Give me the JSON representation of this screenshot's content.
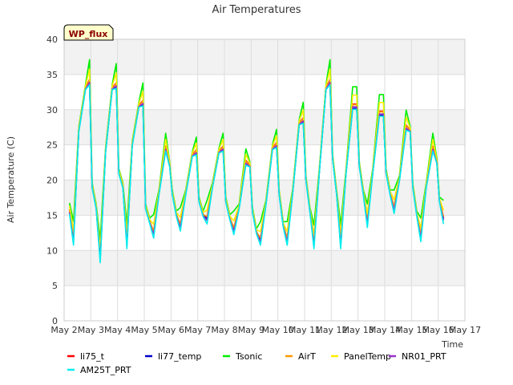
{
  "chart_data": {
    "type": "line",
    "title": "Air Temperatures",
    "xlabel": "Time",
    "ylabel": "Air Temperature (C)",
    "badge": "WP_flux",
    "xlim": [
      0,
      15
    ],
    "ylim": [
      0,
      40
    ],
    "x_ticks": [
      {
        "x": 0,
        "label": "May 2"
      },
      {
        "x": 1,
        "label": "May 3"
      },
      {
        "x": 2,
        "label": "May 4"
      },
      {
        "x": 3,
        "label": "May 5"
      },
      {
        "x": 4,
        "label": "May 6"
      },
      {
        "x": 5,
        "label": "May 7"
      },
      {
        "x": 6,
        "label": "May 8"
      },
      {
        "x": 7,
        "label": "May 9"
      },
      {
        "x": 8,
        "label": "May 10"
      },
      {
        "x": 9,
        "label": "May 11"
      },
      {
        "x": 10,
        "label": "May 12"
      },
      {
        "x": 11,
        "label": "May 13"
      },
      {
        "x": 12,
        "label": "May 14"
      },
      {
        "x": 13,
        "label": "May 15"
      },
      {
        "x": 14,
        "label": "May 16"
      },
      {
        "x": 15,
        "label": "May 17"
      }
    ],
    "y_ticks": [
      0,
      5,
      10,
      15,
      20,
      25,
      30,
      35,
      40
    ],
    "grid": true,
    "legend_position": "bottom",
    "base_series": [
      [
        0.2,
        15.5
      ],
      [
        0.35,
        11.5
      ],
      [
        0.55,
        27.0
      ],
      [
        0.8,
        33.0
      ],
      [
        0.95,
        34.0
      ],
      [
        1.05,
        19.0
      ],
      [
        1.2,
        16.0
      ],
      [
        1.35,
        9.0
      ],
      [
        1.55,
        24.0
      ],
      [
        1.8,
        33.0
      ],
      [
        1.95,
        33.5
      ],
      [
        2.05,
        21.0
      ],
      [
        2.2,
        19.0
      ],
      [
        2.35,
        11.0
      ],
      [
        2.55,
        25.0
      ],
      [
        2.8,
        30.5
      ],
      [
        2.95,
        31.0
      ],
      [
        3.05,
        16.0
      ],
      [
        3.2,
        14.0
      ],
      [
        3.35,
        12.5
      ],
      [
        3.55,
        18.0
      ],
      [
        3.8,
        24.5
      ],
      [
        3.95,
        22.0
      ],
      [
        4.05,
        18.0
      ],
      [
        4.2,
        15.0
      ],
      [
        4.35,
        13.5
      ],
      [
        4.55,
        18.0
      ],
      [
        4.8,
        23.5
      ],
      [
        4.95,
        24.0
      ],
      [
        5.05,
        17.0
      ],
      [
        5.2,
        15.0
      ],
      [
        5.35,
        14.5
      ],
      [
        5.55,
        19.0
      ],
      [
        5.8,
        24.0
      ],
      [
        5.95,
        24.5
      ],
      [
        6.05,
        17.0
      ],
      [
        6.2,
        14.5
      ],
      [
        6.35,
        13.0
      ],
      [
        6.55,
        16.0
      ],
      [
        6.8,
        22.5
      ],
      [
        6.95,
        22.0
      ],
      [
        7.05,
        15.5
      ],
      [
        7.2,
        12.5
      ],
      [
        7.35,
        11.5
      ],
      [
        7.55,
        16.5
      ],
      [
        7.8,
        24.5
      ],
      [
        7.95,
        25.0
      ],
      [
        8.05,
        18.0
      ],
      [
        8.2,
        13.5
      ],
      [
        8.35,
        11.5
      ],
      [
        8.55,
        18.0
      ],
      [
        8.8,
        28.0
      ],
      [
        8.95,
        28.5
      ],
      [
        9.05,
        20.0
      ],
      [
        9.2,
        15.5
      ],
      [
        9.35,
        11.0
      ],
      [
        9.55,
        21.0
      ],
      [
        9.8,
        33.0
      ],
      [
        9.95,
        34.0
      ],
      [
        10.05,
        23.0
      ],
      [
        10.2,
        18.0
      ],
      [
        10.35,
        11.0
      ],
      [
        10.55,
        21.0
      ],
      [
        10.8,
        30.5
      ],
      [
        10.95,
        30.5
      ],
      [
        11.05,
        22.0
      ],
      [
        11.2,
        18.0
      ],
      [
        11.35,
        14.0
      ],
      [
        11.55,
        21.0
      ],
      [
        11.8,
        29.5
      ],
      [
        11.95,
        29.5
      ],
      [
        12.05,
        21.0
      ],
      [
        12.2,
        18.0
      ],
      [
        12.35,
        16.0
      ],
      [
        12.55,
        20.0
      ],
      [
        12.8,
        27.5
      ],
      [
        12.95,
        27.0
      ],
      [
        13.05,
        19.0
      ],
      [
        13.2,
        15.0
      ],
      [
        13.35,
        12.0
      ],
      [
        13.55,
        19.0
      ],
      [
        13.8,
        24.5
      ],
      [
        13.95,
        22.5
      ],
      [
        14.05,
        17.0
      ],
      [
        14.2,
        14.5
      ]
    ],
    "series": [
      {
        "name": "li75_t",
        "color": "#ff0000",
        "offset": 0.3,
        "peak_scale": 1.0,
        "trough_shift": 0.0
      },
      {
        "name": "li77_temp",
        "color": "#0000cc",
        "offset": 0.0,
        "peak_scale": 0.98,
        "trough_shift": 0.0
      },
      {
        "name": "Tsonic",
        "color": "#00ee00",
        "offset": 1.2,
        "peak_scale": 1.1,
        "trough_shift": 2.0
      },
      {
        "name": "AirT",
        "color": "#ff9900",
        "offset": 0.2,
        "peak_scale": 1.0,
        "trough_shift": 0.2
      },
      {
        "name": "PanelTemp",
        "color": "#ffee00",
        "offset": 0.8,
        "peak_scale": 1.05,
        "trough_shift": 0.8
      },
      {
        "name": "NR01_PRT",
        "color": "#9933cc",
        "offset": -0.1,
        "peak_scale": 1.0,
        "trough_shift": -0.2
      },
      {
        "name": "AM25T_PRT",
        "color": "#00eeee",
        "offset": -0.3,
        "peak_scale": 0.99,
        "trough_shift": -0.6
      }
    ]
  }
}
